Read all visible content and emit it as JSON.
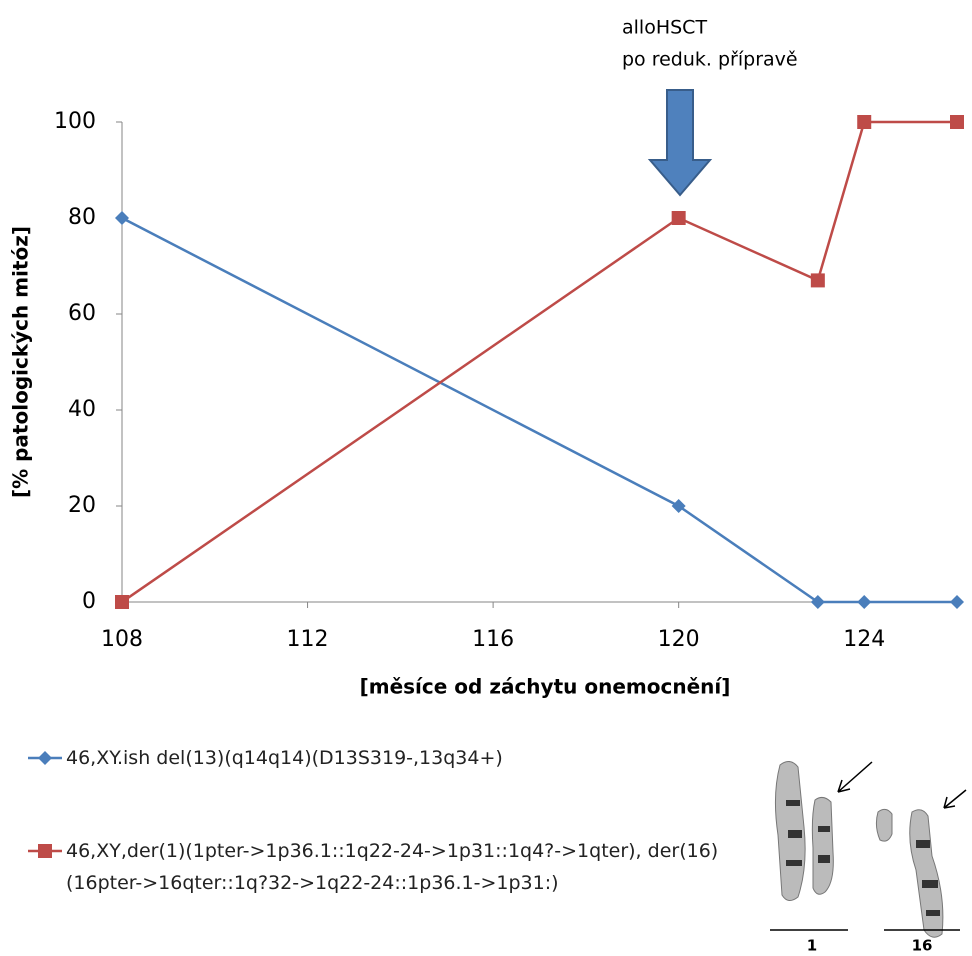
{
  "chart_data": {
    "type": "line",
    "annotation": [
      "alloHSCT",
      "po reduk. přípravě"
    ],
    "x_label": "[měsíce od záchytu onemocnění]",
    "y_label": "[% patologických mitóz]",
    "x": [
      108,
      120,
      123,
      124,
      126
    ],
    "series": [
      {
        "name": "46,XY.ish del(13)(q14q14)(D13S319-,13q34+)",
        "color": "#4a7ebb",
        "marker": "diamond",
        "values": [
          80,
          20,
          0,
          0,
          0
        ]
      },
      {
        "name": "46,XY,der(1)(1pter->1p36.1::1q22-24->1p31::1q4?->1qter), der(16)(16pter->16qter::1q?32->1q22-24::1p36.1->1p31:)",
        "color": "#be4b48",
        "marker": "square",
        "values": [
          0,
          80,
          67,
          100,
          100
        ]
      }
    ],
    "xlim": [
      108,
      126
    ],
    "xticks": [
      108,
      112,
      116,
      120,
      124
    ],
    "ylim": [
      0,
      100
    ],
    "yticks": [
      0,
      20,
      40,
      60,
      80,
      100
    ],
    "grid": false,
    "image_labels": [
      "1",
      "16"
    ]
  }
}
